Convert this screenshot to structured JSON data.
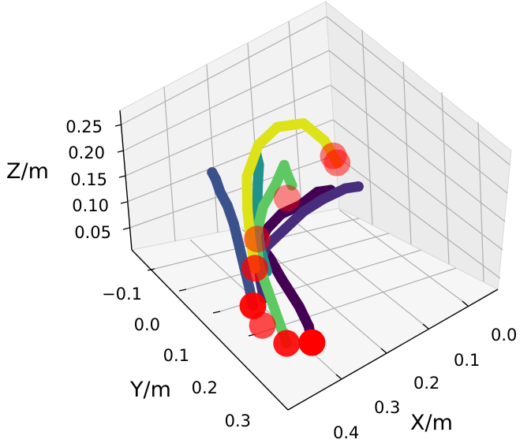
{
  "chart_data": {
    "type": "scatter3d",
    "title": "",
    "xlabel": "X/m",
    "ylabel": "Y/m",
    "zlabel": "Z/m",
    "xlim": [
      -0.05,
      0.45
    ],
    "ylim": [
      -0.15,
      0.35
    ],
    "zlim": [
      0.02,
      0.28
    ],
    "x_ticks": [
      "0.0",
      "0.1",
      "0.2",
      "0.3",
      "0.4"
    ],
    "y_ticks": [
      "−0.1",
      "0.0",
      "0.1",
      "0.2",
      "0.3"
    ],
    "z_ticks": [
      "0.05",
      "0.10",
      "0.15",
      "0.20",
      "0.25"
    ],
    "grid": true,
    "marker_color": "#ff0000",
    "trajectory_colors": [
      "#440154",
      "#472d7b",
      "#3b518b",
      "#21918c",
      "#5ec962",
      "#dde318"
    ],
    "trajectories": [
      {
        "color": "#440154",
        "x": [
          0.32,
          0.31,
          0.3,
          0.29,
          0.28,
          0.26,
          0.24,
          0.2,
          0.15,
          0.1,
          0.05,
          0.02
        ],
        "y": [
          0.26,
          0.24,
          0.2,
          0.16,
          0.12,
          0.06,
          0.0,
          -0.03,
          -0.05,
          -0.06,
          -0.07,
          -0.07
        ],
        "z": [
          0.06,
          0.08,
          0.1,
          0.11,
          0.12,
          0.13,
          0.13,
          0.13,
          0.13,
          0.12,
          0.12,
          0.11
        ]
      },
      {
        "color": "#472d7b",
        "x": [
          0.31,
          0.3,
          0.28,
          0.24,
          0.18,
          0.12,
          0.06,
          0.0,
          -0.03
        ],
        "y": [
          0.1,
          0.08,
          0.05,
          0.02,
          0.0,
          -0.02,
          -0.04,
          -0.05,
          -0.05
        ],
        "z": [
          0.09,
          0.11,
          0.12,
          0.13,
          0.13,
          0.13,
          0.12,
          0.11,
          0.1
        ]
      },
      {
        "color": "#3b518b",
        "x": [
          0.35,
          0.34,
          0.32,
          0.3,
          0.28,
          0.27,
          0.27,
          0.27,
          0.27
        ],
        "y": [
          0.12,
          0.1,
          0.06,
          0.02,
          -0.02,
          -0.05,
          -0.07,
          -0.08,
          -0.09
        ],
        "z": [
          0.1,
          0.12,
          0.14,
          0.16,
          0.18,
          0.2,
          0.22,
          0.24,
          0.25
        ]
      },
      {
        "color": "#21918c",
        "x": [
          0.27,
          0.26,
          0.24,
          0.21,
          0.19,
          0.18
        ],
        "y": [
          0.06,
          0.03,
          0.0,
          -0.03,
          -0.05,
          -0.07
        ],
        "z": [
          0.11,
          0.14,
          0.18,
          0.22,
          0.24,
          0.25
        ]
      },
      {
        "color": "#5ec962",
        "x": [
          0.35,
          0.33,
          0.3,
          0.26,
          0.21,
          0.17,
          0.14,
          0.13,
          0.12
        ],
        "y": [
          0.22,
          0.16,
          0.08,
          0.02,
          -0.02,
          -0.03,
          -0.04,
          -0.05,
          -0.05
        ],
        "z": [
          0.06,
          0.1,
          0.14,
          0.16,
          0.18,
          0.2,
          0.22,
          0.2,
          0.17
        ]
      },
      {
        "color": "#dde318",
        "x": [
          0.31,
          0.3,
          0.28,
          0.24,
          0.18,
          0.12,
          0.06,
          0.03,
          0.02
        ],
        "y": [
          0.08,
          0.06,
          0.03,
          -0.02,
          -0.06,
          -0.08,
          -0.08,
          -0.06,
          -0.04
        ],
        "z": [
          0.14,
          0.18,
          0.22,
          0.25,
          0.27,
          0.27,
          0.25,
          0.21,
          0.17
        ]
      }
    ],
    "markers": [
      {
        "x": 0.32,
        "y": 0.26,
        "z": 0.06,
        "alpha": 1.0
      },
      {
        "x": 0.35,
        "y": 0.22,
        "z": 0.06,
        "alpha": 0.9
      },
      {
        "x": 0.36,
        "y": 0.16,
        "z": 0.08,
        "alpha": 0.7
      },
      {
        "x": 0.35,
        "y": 0.12,
        "z": 0.1,
        "alpha": 0.95
      },
      {
        "x": 0.31,
        "y": 0.08,
        "z": 0.14,
        "alpha": 0.75
      },
      {
        "x": 0.21,
        "y": -0.05,
        "z": 0.11,
        "alpha": 0.5
      },
      {
        "x": 0.12,
        "y": -0.07,
        "z": 0.14,
        "alpha": 0.45
      },
      {
        "x": 0.02,
        "y": -0.05,
        "z": 0.18,
        "alpha": 0.5
      },
      {
        "x": 0.02,
        "y": -0.04,
        "z": 0.17,
        "alpha": 0.5
      }
    ]
  }
}
